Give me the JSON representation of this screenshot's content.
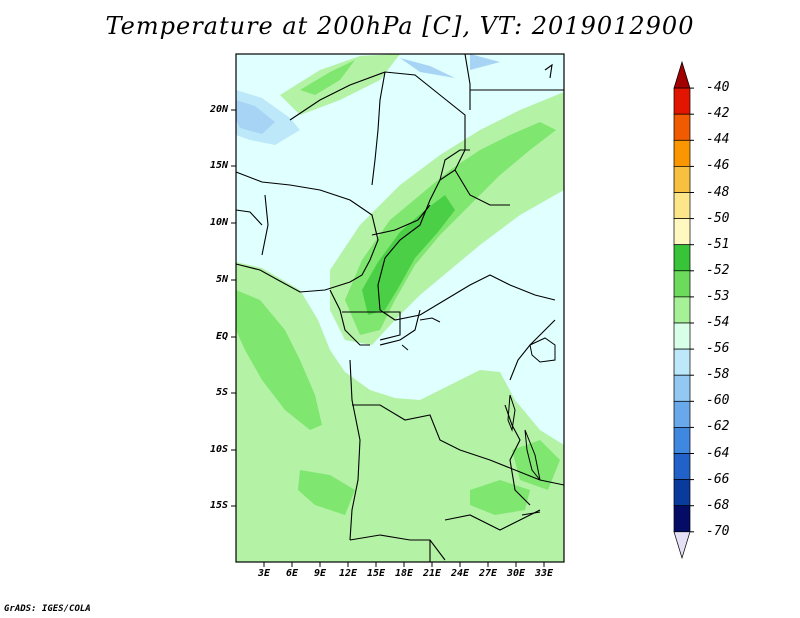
{
  "title": "Temperature at 200hPa [C], VT: 2019012900",
  "credit": "GrADS: IGES/COLA",
  "lat_labels": [
    "20N",
    "15N",
    "10N",
    "5N",
    "EQ",
    "5S",
    "10S",
    "15S"
  ],
  "lon_labels": [
    "3E",
    "6E",
    "9E",
    "12E",
    "15E",
    "18E",
    "21E",
    "24E",
    "27E",
    "30E",
    "33E"
  ],
  "colorbar": {
    "labels": [
      "-40",
      "-42",
      "-44",
      "-46",
      "-48",
      "-50",
      "-51",
      "-52",
      "-53",
      "-54",
      "-56",
      "-58",
      "-60",
      "-62",
      "-64",
      "-66",
      "-68",
      "-70"
    ],
    "colors": [
      "#a00000",
      "#e21600",
      "#f05a00",
      "#fa9600",
      "#f7c040",
      "#fde68a",
      "#fff8c0",
      "#38c438",
      "#6cdb5c",
      "#a6f098",
      "#d8ffe8",
      "#bde8fa",
      "#92c8f2",
      "#6aa8ec",
      "#4087e0",
      "#2261c8",
      "#0a3a9c",
      "#050c66",
      "#e6e0f6"
    ]
  }
}
